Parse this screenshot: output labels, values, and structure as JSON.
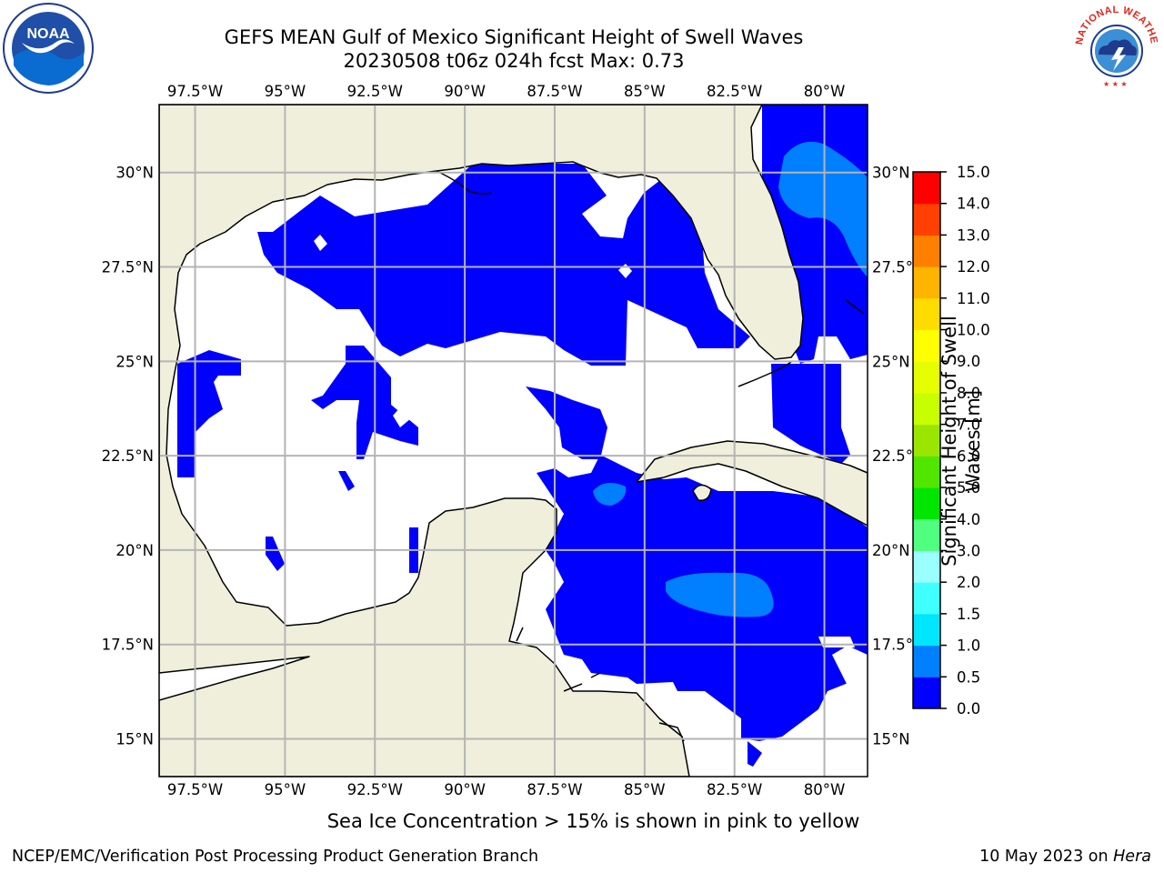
{
  "title": {
    "line1": "GEFS MEAN Gulf of Mexico Significant Height of Swell Waves",
    "line2": "20230508 t06z 024h fcst   Max: 0.73"
  },
  "map": {
    "lon_range": [
      -98.5,
      -78.8
    ],
    "lat_range": [
      14.0,
      31.8
    ],
    "lon_ticks": [
      {
        "value": -97.5,
        "label": "97.5°W"
      },
      {
        "value": -95.0,
        "label": "95°W"
      },
      {
        "value": -92.5,
        "label": "92.5°W"
      },
      {
        "value": -90.0,
        "label": "90°W"
      },
      {
        "value": -87.5,
        "label": "87.5°W"
      },
      {
        "value": -85.0,
        "label": "85°W"
      },
      {
        "value": -82.5,
        "label": "82.5°W"
      },
      {
        "value": -80.0,
        "label": "80°W"
      }
    ],
    "lat_ticks": [
      {
        "value": 30.0,
        "label": "30°N"
      },
      {
        "value": 27.5,
        "label": "27.5°N"
      },
      {
        "value": 25.0,
        "label": "25°N"
      },
      {
        "value": 22.5,
        "label": "22.5°N"
      },
      {
        "value": 20.0,
        "label": "20°N"
      },
      {
        "value": 17.5,
        "label": "17.5°N"
      },
      {
        "value": 15.0,
        "label": "15°N"
      }
    ],
    "colors": {
      "land": "#efefdc",
      "ocean_calm": "#ffffff",
      "swell_0_0.5": "#0000ff",
      "swell_0.5_1.0": "#0080ff",
      "grid": "#b4b4b4"
    }
  },
  "colorbar": {
    "label": "Significant Height of Swell Waves [m]",
    "label_lines": [
      "Significant Height of Swell",
      "Waves [m]"
    ],
    "levels": [
      "0.0",
      "0.5",
      "1.0",
      "1.5",
      "2.0",
      "3.0",
      "4.0",
      "5.0",
      "6.0",
      "7.0",
      "8.0",
      "9.0",
      "10.0",
      "11.0",
      "12.0",
      "13.0",
      "14.0",
      "15.0"
    ],
    "colors": [
      "#0000ff",
      "#0080ff",
      "#00e6ff",
      "#40ffff",
      "#9bffff",
      "#50ff80",
      "#00e600",
      "#50e600",
      "#9be600",
      "#c8ff00",
      "#e6ff00",
      "#ffff00",
      "#ffdc00",
      "#ffb400",
      "#ff8000",
      "#ff4000",
      "#ff0000"
    ]
  },
  "footer": {
    "note": "Sea Ice Concentration > 15% is shown in pink to yellow",
    "left": "NCEP/EMC/Verification Post Processing Product Generation Branch",
    "right_date": "10 May 2023 on ",
    "right_host": "Hera"
  },
  "logos": {
    "noaa_text": "NOAA",
    "nws_text": "NATIONAL WEATHER SERVICE"
  }
}
